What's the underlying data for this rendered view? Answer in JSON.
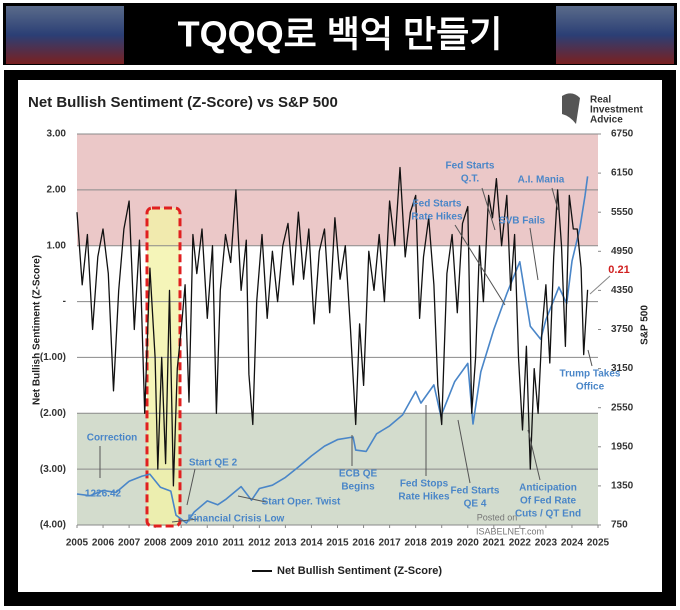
{
  "header": {
    "title": "TQQQ로 백억 만들기"
  },
  "chart_data": {
    "type": "line",
    "title": "Net Bullish Sentiment (Z-Score) vs S&P 500",
    "logo_text": [
      "Real",
      "Investment",
      "Advice"
    ],
    "y_label": "Net Bullish Sentiment (Z-Score)",
    "y2_label": "S&P 500",
    "xlim": [
      2005,
      2025
    ],
    "xticks": [
      2005,
      2006,
      2007,
      2008,
      2009,
      2010,
      2011,
      2012,
      2013,
      2014,
      2015,
      2016,
      2017,
      2018,
      2019,
      2020,
      2021,
      2022,
      2023,
      2024,
      2025
    ],
    "ylim": [
      -4,
      3
    ],
    "yticks": [
      {
        "value": 3,
        "label": "3.00"
      },
      {
        "value": 2,
        "label": "2.00"
      },
      {
        "value": 1,
        "label": "1.00"
      },
      {
        "value": 0,
        "label": "-"
      },
      {
        "value": -1,
        "label": "(1.00)"
      },
      {
        "value": -2,
        "label": "(2.00)"
      },
      {
        "value": -3,
        "label": "(3.00)"
      },
      {
        "value": -4,
        "label": "(4.00)"
      }
    ],
    "y2lim": [
      750,
      6750
    ],
    "y2ticks": [
      750,
      1350,
      1950,
      2550,
      3150,
      3750,
      4350,
      4950,
      5550,
      6150,
      6750
    ],
    "grid": true,
    "bands": [
      {
        "from": 1,
        "to": 3,
        "color": "#ebc8c8"
      },
      {
        "from": -4,
        "to": -2,
        "color": "#d3dccd"
      }
    ],
    "series": [
      {
        "name": "Net Bullish Sentiment (Z-Score)",
        "color": "#111111",
        "x": [
          2005.0,
          2005.2,
          2005.4,
          2005.6,
          2005.8,
          2006.0,
          2006.2,
          2006.4,
          2006.6,
          2006.8,
          2007.0,
          2007.2,
          2007.4,
          2007.6,
          2007.8,
          2008.0,
          2008.1,
          2008.25,
          2008.4,
          2008.55,
          2008.7,
          2008.85,
          2009.0,
          2009.15,
          2009.3,
          2009.45,
          2009.6,
          2009.8,
          2010.0,
          2010.2,
          2010.35,
          2010.5,
          2010.7,
          2010.9,
          2011.1,
          2011.3,
          2011.5,
          2011.6,
          2011.75,
          2011.9,
          2012.1,
          2012.3,
          2012.5,
          2012.7,
          2012.9,
          2013.1,
          2013.3,
          2013.5,
          2013.7,
          2013.9,
          2014.1,
          2014.3,
          2014.5,
          2014.7,
          2014.9,
          2015.1,
          2015.3,
          2015.5,
          2015.7,
          2015.85,
          2016.0,
          2016.2,
          2016.4,
          2016.6,
          2016.8,
          2017.0,
          2017.2,
          2017.4,
          2017.6,
          2017.8,
          2018.0,
          2018.15,
          2018.3,
          2018.5,
          2018.7,
          2018.85,
          2019.0,
          2019.2,
          2019.4,
          2019.6,
          2019.8,
          2020.0,
          2020.15,
          2020.3,
          2020.45,
          2020.6,
          2020.8,
          2020.95,
          2021.1,
          2021.3,
          2021.5,
          2021.65,
          2021.8,
          2021.95,
          2022.1,
          2022.25,
          2022.4,
          2022.55,
          2022.7,
          2022.85,
          2023.0,
          2023.15,
          2023.3,
          2023.45,
          2023.6,
          2023.75,
          2023.9,
          2024.05,
          2024.2,
          2024.35,
          2024.45,
          2024.6
        ],
        "values": [
          1.6,
          0.3,
          1.2,
          -0.5,
          0.8,
          1.3,
          0.5,
          -1.6,
          0.2,
          1.3,
          1.8,
          -0.5,
          1.1,
          -2.0,
          0.6,
          -1.0,
          -3.0,
          -1.0,
          -2.9,
          0.2,
          -3.3,
          -1.2,
          -0.5,
          0.3,
          -1.8,
          1.2,
          0.5,
          1.3,
          -0.3,
          1.0,
          -2.0,
          0.2,
          1.2,
          0.7,
          2.0,
          0.2,
          1.1,
          -1.3,
          -2.2,
          0.0,
          1.2,
          -0.3,
          0.9,
          0.0,
          1.0,
          1.4,
          0.3,
          1.6,
          0.4,
          1.3,
          -0.4,
          0.9,
          1.3,
          -0.2,
          1.5,
          0.4,
          1.0,
          -0.5,
          -2.2,
          -0.4,
          -1.5,
          0.9,
          0.2,
          1.2,
          0.0,
          1.8,
          1.0,
          2.4,
          0.8,
          1.6,
          1.9,
          -0.3,
          0.8,
          1.5,
          0.3,
          -1.5,
          -2.2,
          0.5,
          1.2,
          -0.2,
          1.4,
          1.7,
          -2.0,
          -1.0,
          1.0,
          0.0,
          1.9,
          1.5,
          2.2,
          1.0,
          1.9,
          0.2,
          1.2,
          -1.0,
          -2.3,
          -0.8,
          -3.0,
          -1.2,
          -2.0,
          -0.5,
          0.3,
          -1.1,
          0.8,
          2.0,
          1.0,
          -0.8,
          1.9,
          1.3,
          1.3,
          0.6,
          -0.95,
          0.21
        ]
      },
      {
        "color": "#4a86c8",
        "axis": "y2",
        "x": [
          2005.0,
          2005.5,
          2006.0,
          2006.5,
          2007.0,
          2007.5,
          2007.8,
          2008.2,
          2008.6,
          2008.8,
          2009.2,
          2009.5,
          2010.0,
          2010.4,
          2010.7,
          2011.3,
          2011.7,
          2012.0,
          2012.5,
          2013.0,
          2013.5,
          2014.0,
          2014.5,
          2015.0,
          2015.6,
          2015.7,
          2016.1,
          2016.5,
          2017.0,
          2017.5,
          2018.0,
          2018.2,
          2018.7,
          2018.97,
          2019.5,
          2020.0,
          2020.2,
          2020.5,
          2021.0,
          2021.5,
          2022.0,
          2022.4,
          2022.8,
          2023.0,
          2023.5,
          2023.8,
          2024.0,
          2024.3,
          2024.5,
          2024.6
        ],
        "values": [
          1226.42,
          1200,
          1280,
          1250,
          1420,
          1500,
          1530,
          1330,
          1270,
          900,
          780,
          950,
          1120,
          1060,
          1140,
          1340,
          1130,
          1310,
          1360,
          1480,
          1640,
          1810,
          1960,
          2060,
          2100,
          1900,
          1880,
          2150,
          2270,
          2440,
          2800,
          2620,
          2900,
          2420,
          2950,
          3230,
          2300,
          3100,
          3750,
          4300,
          4790,
          3800,
          3600,
          3900,
          4400,
          4150,
          4800,
          5300,
          5800,
          6100
        ]
      }
    ],
    "annotations": [
      [
        "Correction"
      ],
      [
        "Start QE 2"
      ],
      [
        "Financial Crisis Low"
      ],
      [
        "Start Oper. Twist"
      ],
      [
        "ECB QE",
        "Begins"
      ],
      [
        "Fed Stops",
        "Rate Hikes"
      ],
      [
        "Fed Starts",
        "QE 4"
      ],
      [
        "Fed Starts",
        "Q.T."
      ],
      [
        "Fed Starts",
        "Rate Hikes"
      ],
      [
        "SVB Fails"
      ],
      [
        "A.I. Mania"
      ],
      [
        "Anticipation",
        "Of Fed Rate",
        "Cuts / QT End"
      ],
      [
        "Trump Takes",
        "Office"
      ],
      [
        "Posted on"
      ],
      [
        "ISABELNET.com"
      ]
    ],
    "legend": "bottom"
  }
}
